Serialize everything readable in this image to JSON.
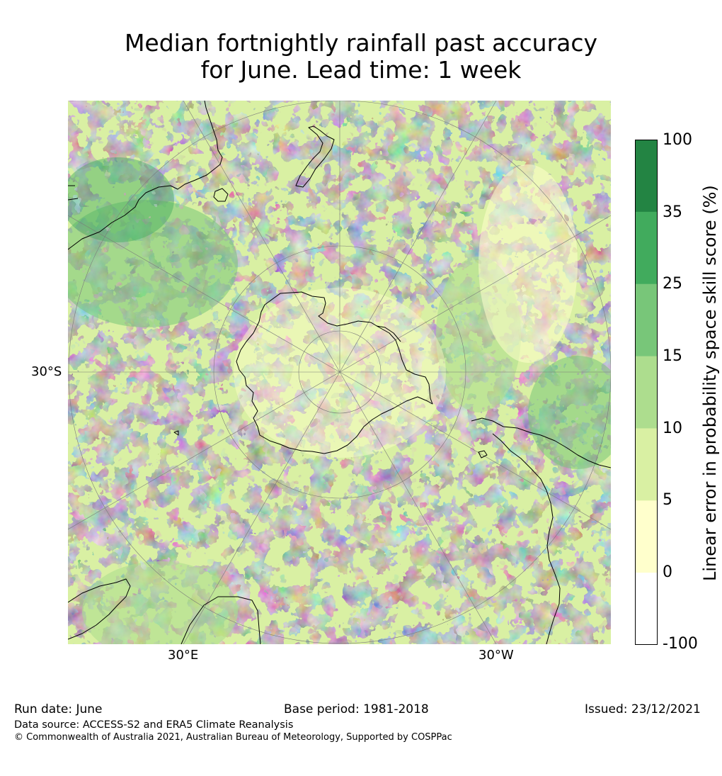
{
  "title": {
    "line1": "Median fortnightly rainfall past accuracy",
    "line2": "for June. Lead time: 1 week"
  },
  "map": {
    "projection": "south-polar-stereographic",
    "graticule_labels": {
      "lat_30s": "30°S",
      "lon_30e": "30°E",
      "lon_30w": "30°W"
    },
    "colors": {
      "land_outline": "#000000",
      "graticule": "#7a7a7a"
    }
  },
  "colorbar": {
    "title": "Linear error in probability space skill score (%)",
    "ticks": [
      "100",
      "35",
      "25",
      "15",
      "10",
      "5",
      "0",
      "-100"
    ],
    "bins": [
      {
        "range": [
          35,
          100
        ],
        "color": "#238443"
      },
      {
        "range": [
          25,
          35
        ],
        "color": "#41ab5d"
      },
      {
        "range": [
          15,
          25
        ],
        "color": "#78c679"
      },
      {
        "range": [
          10,
          15
        ],
        "color": "#addd8e"
      },
      {
        "range": [
          5,
          10
        ],
        "color": "#d9f0a3"
      },
      {
        "range": [
          0,
          5
        ],
        "color": "#ffffcc"
      },
      {
        "range": [
          -100,
          0
        ],
        "color": "#ffffff"
      }
    ]
  },
  "footer": {
    "run_date": "Run date: June",
    "base_period": "Base period: 1981-2018",
    "issued": "Issued: 23/12/2021",
    "data_source": "Data source: ACCESS-S2 and ERA5 Climate Reanalysis",
    "copyright": "© Commonwealth of Australia 2021, Australian Bureau of Meteorology, Supported by COSPPac"
  }
}
